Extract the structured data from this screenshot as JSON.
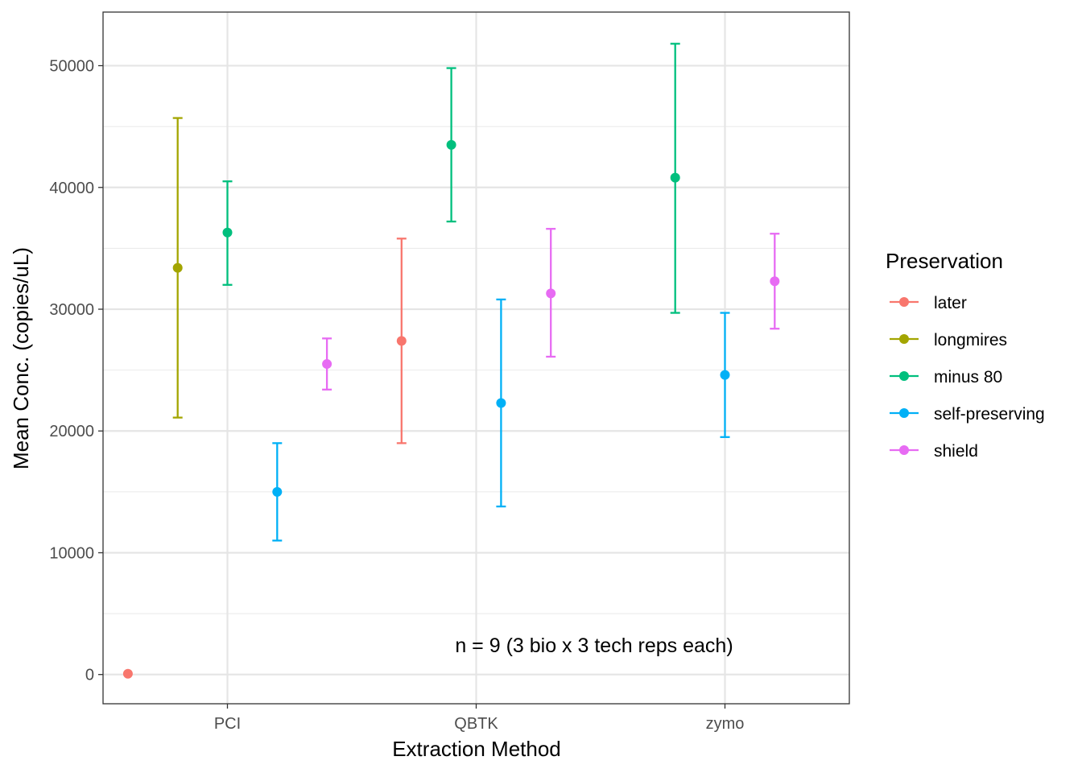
{
  "chart_data": {
    "type": "scatter",
    "subtype": "point-errorbar",
    "xlabel": "Extraction Method",
    "ylabel": "Mean Conc. (copies/uL)",
    "categories": [
      "PCI",
      "QBTK",
      "zymo"
    ],
    "ylim": [
      -2400,
      54400
    ],
    "yticks": [
      0,
      10000,
      20000,
      30000,
      40000,
      50000
    ],
    "ytick_labels": [
      "0",
      "10000",
      "20000",
      "30000",
      "40000",
      "50000"
    ],
    "grid": true,
    "legend": {
      "title": "Preservation",
      "position": "right",
      "entries": [
        "later",
        "longmires",
        "minus 80",
        "self-preserving",
        "shield"
      ]
    },
    "colors": {
      "later": "#F8766D",
      "longmires": "#A3A500",
      "minus 80": "#00BF7D",
      "self-preserving": "#00B0F6",
      "shield": "#E76BF3"
    },
    "series": [
      {
        "name": "later",
        "values": [
          {
            "x": "PCI",
            "y": 60,
            "ymin": null,
            "ymax": null
          },
          {
            "x": "QBTK",
            "y": 27400,
            "ymin": 19000,
            "ymax": 35800
          }
        ]
      },
      {
        "name": "longmires",
        "values": [
          {
            "x": "PCI",
            "y": 33400,
            "ymin": 21100,
            "ymax": 45700
          }
        ]
      },
      {
        "name": "minus 80",
        "values": [
          {
            "x": "PCI",
            "y": 36300,
            "ymin": 32000,
            "ymax": 40500
          },
          {
            "x": "QBTK",
            "y": 43500,
            "ymin": 37200,
            "ymax": 49800
          },
          {
            "x": "zymo",
            "y": 40800,
            "ymin": 29700,
            "ymax": 51800
          }
        ]
      },
      {
        "name": "self-preserving",
        "values": [
          {
            "x": "PCI",
            "y": 15000,
            "ymin": 11000,
            "ymax": 19000
          },
          {
            "x": "QBTK",
            "y": 22300,
            "ymin": 13800,
            "ymax": 30800
          },
          {
            "x": "zymo",
            "y": 24600,
            "ymin": 19500,
            "ymax": 29700
          }
        ]
      },
      {
        "name": "shield",
        "values": [
          {
            "x": "PCI",
            "y": 25500,
            "ymin": 23400,
            "ymax": 27600
          },
          {
            "x": "QBTK",
            "y": 31300,
            "ymin": 26100,
            "ymax": 36600
          },
          {
            "x": "zymo",
            "y": 32300,
            "ymin": 28400,
            "ymax": 36200
          }
        ]
      }
    ],
    "annotation": "n = 9 (3 bio x 3 tech reps each)"
  }
}
